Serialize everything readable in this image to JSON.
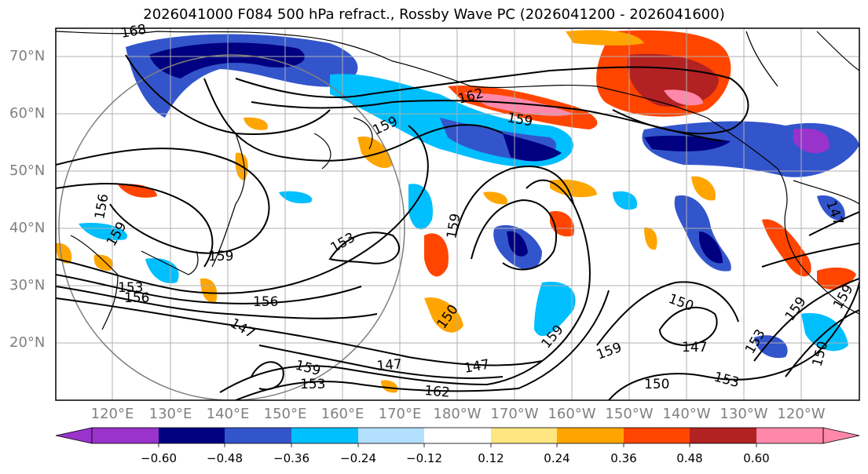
{
  "title": "2026041000 F084 500 hPa refract., Rossby Wave PC (2026041200 - 2026041600)",
  "lat_labels": [
    "70°N",
    "60°N",
    "50°N",
    "40°N",
    "30°N",
    "20°N"
  ],
  "lon_labels": [
    "120°E",
    "130°E",
    "140°E",
    "150°E",
    "160°E",
    "170°E",
    "180°W",
    "170°W",
    "160°W",
    "150°W",
    "140°W",
    "130°W",
    "120°W"
  ],
  "colorbar": {
    "ticks": [
      "−0.60",
      "−0.48",
      "−0.36",
      "−0.24",
      "−0.12",
      "0.12",
      "0.24",
      "0.36",
      "0.48",
      "0.60"
    ],
    "colors": [
      "#9933cc",
      "#000080",
      "#3355cc",
      "#00bfff",
      "#00a2f2",
      "#b3e0ff",
      "#ffffff",
      "#ffe680",
      "#ffa500",
      "#ff4500",
      "#b22222",
      "#ff88aa"
    ]
  },
  "contour_labels": [
    "168",
    "162",
    "159",
    "159",
    "156",
    "159",
    "153",
    "159",
    "153",
    "156",
    "156",
    "147",
    "159",
    "150",
    "150",
    "147",
    "153",
    "147",
    "150",
    "162",
    "153",
    "159",
    "159",
    "159",
    "150",
    "159",
    "150",
    "153",
    "147",
    "159"
  ]
}
